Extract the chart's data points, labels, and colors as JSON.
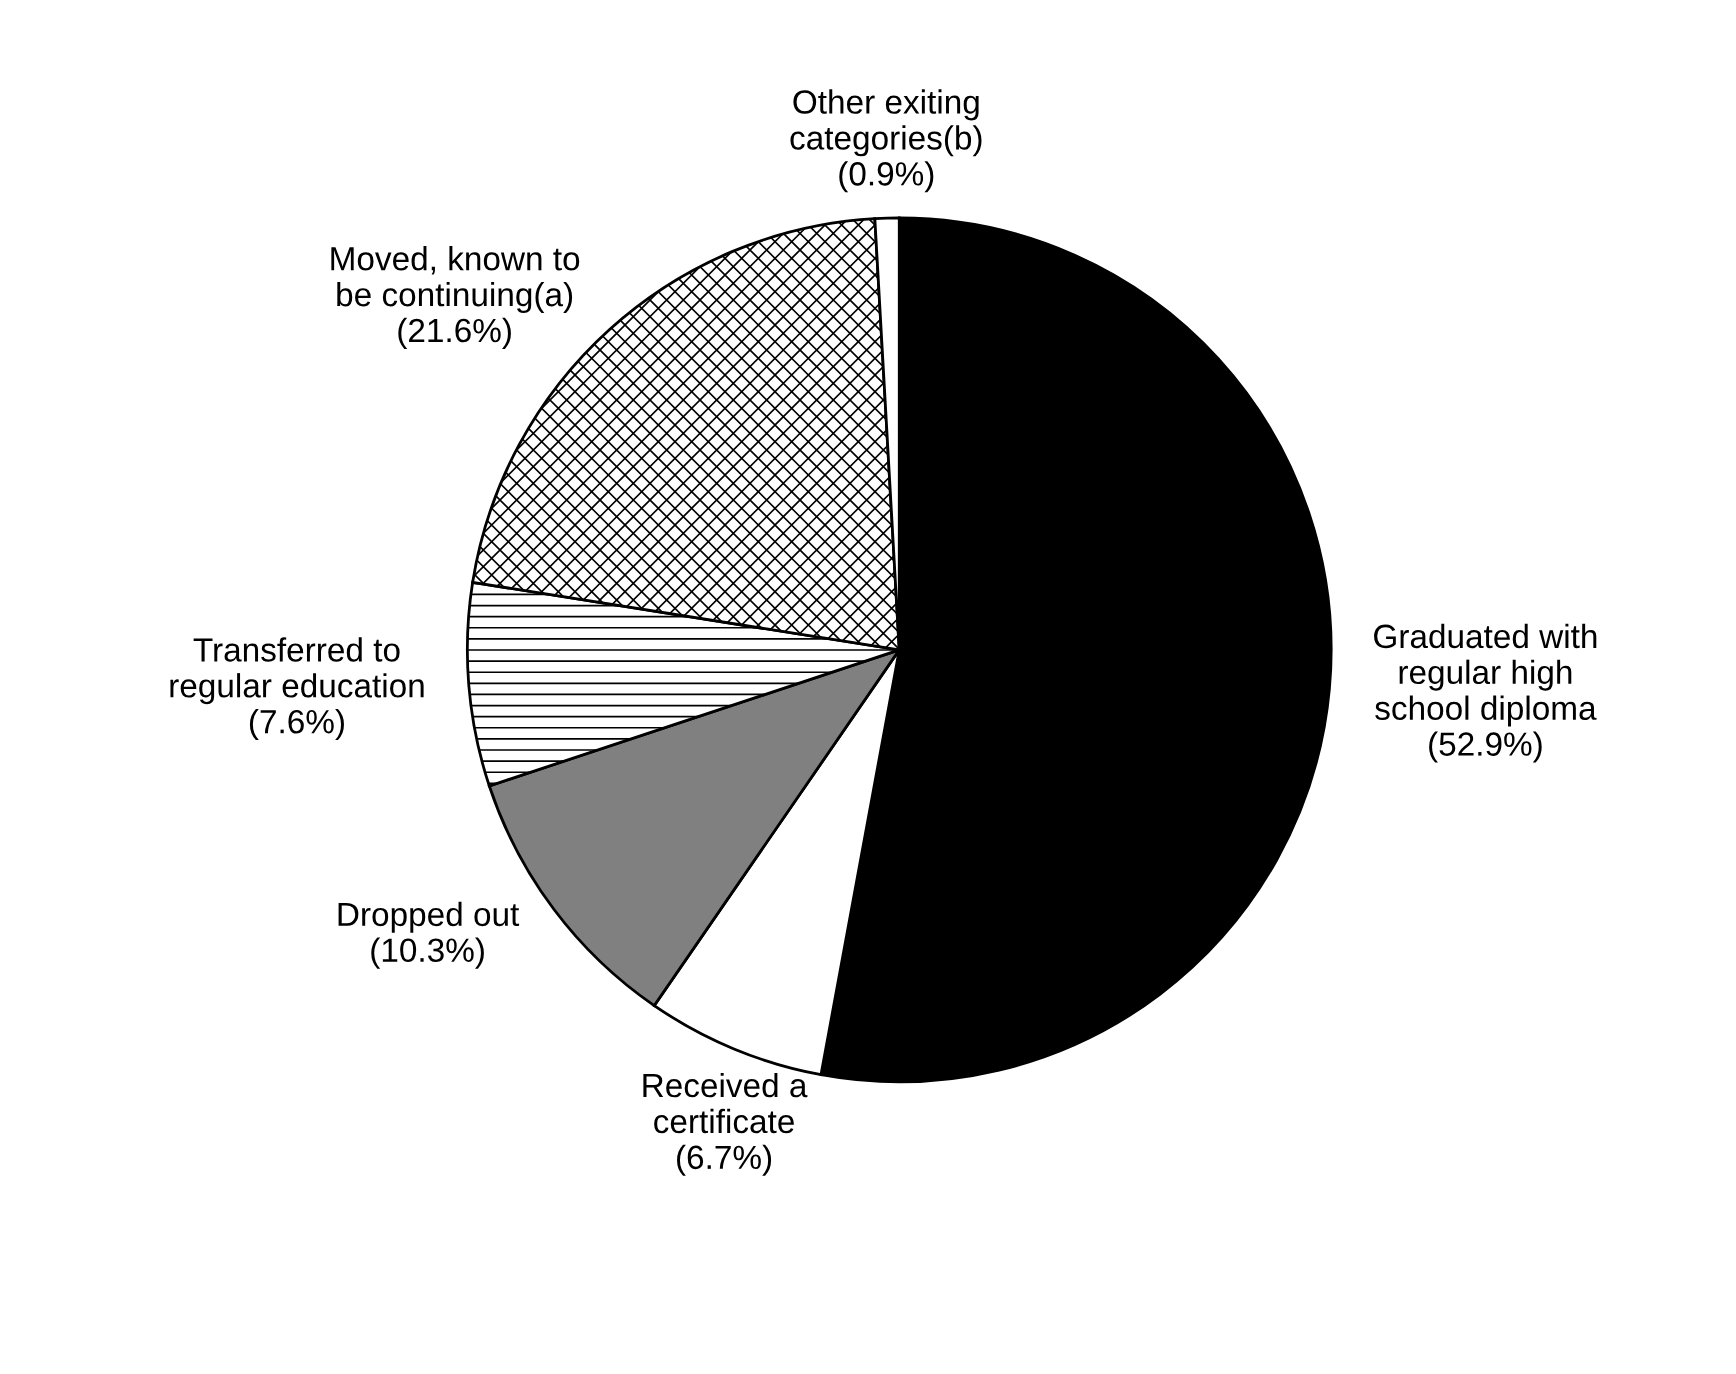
{
  "chart_data": {
    "type": "pie",
    "categories": [
      "Graduated with\nregular high\nschool diploma",
      "Received a\ncertificate",
      "Dropped out",
      "Transferred to\nregular education",
      "Moved, known to\nbe continuing(a)",
      "Other exiting\ncategories(b)"
    ],
    "values": [
      52.9,
      6.7,
      10.3,
      7.6,
      21.6,
      0.9
    ],
    "value_labels": [
      "(52.9%)",
      "(6.7%)",
      "(10.3%)",
      "(7.6%)",
      "(21.6%)",
      "(0.9%)"
    ],
    "colors": [
      "#000000",
      "#ffffff",
      "#808080",
      "#ffffff",
      "#ffffff",
      "#ffffff"
    ]
  }
}
